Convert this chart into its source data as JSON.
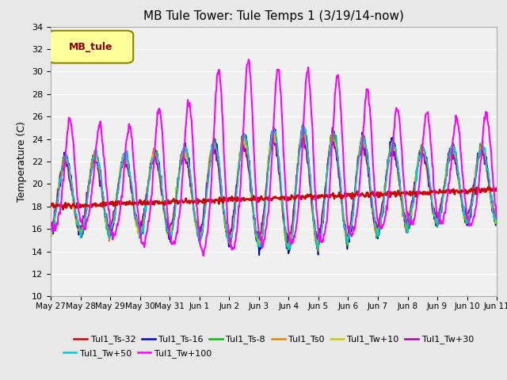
{
  "title": "MB Tule Tower: Tule Temps 1 (3/19/14-now)",
  "ylabel": "Temperature (C)",
  "ylim": [
    10,
    34
  ],
  "yticks": [
    10,
    12,
    14,
    16,
    18,
    20,
    22,
    24,
    26,
    28,
    30,
    32,
    34
  ],
  "bg_color": "#e8e8e8",
  "plot_bg": "#f0f0f0",
  "legend_label": "MB_tule",
  "series_order": [
    "Tul1_Ts-32",
    "Tul1_Ts-16",
    "Tul1_Ts-8",
    "Tul1_Ts0",
    "Tul1_Tw+10",
    "Tul1_Tw+30",
    "Tul1_Tw+50",
    "Tul1_Tw+100"
  ],
  "series": {
    "Tul1_Ts-32": {
      "color": "#cc0000",
      "lw": 1.8,
      "zorder": 5
    },
    "Tul1_Ts-16": {
      "color": "#0000cc",
      "lw": 1.2,
      "zorder": 4
    },
    "Tul1_Ts-8": {
      "color": "#00bb00",
      "lw": 1.2,
      "zorder": 4
    },
    "Tul1_Ts0": {
      "color": "#dd8800",
      "lw": 1.2,
      "zorder": 4
    },
    "Tul1_Tw+10": {
      "color": "#cccc00",
      "lw": 1.2,
      "zorder": 4
    },
    "Tul1_Tw+30": {
      "color": "#aa00aa",
      "lw": 1.2,
      "zorder": 4
    },
    "Tul1_Tw+50": {
      "color": "#00cccc",
      "lw": 1.2,
      "zorder": 4
    },
    "Tul1_Tw+100": {
      "color": "#ff00ff",
      "lw": 1.5,
      "zorder": 6
    }
  },
  "legend_entries": [
    {
      "color": "#cc0000",
      "label": "Tul1_Ts-32"
    },
    {
      "color": "#0000cc",
      "label": "Tul1_Ts-16"
    },
    {
      "color": "#00bb00",
      "label": "Tul1_Ts-8"
    },
    {
      "color": "#dd8800",
      "label": "Tul1_Ts0"
    },
    {
      "color": "#cccc00",
      "label": "Tul1_Tw+10"
    },
    {
      "color": "#aa00aa",
      "label": "Tul1_Tw+30"
    },
    {
      "color": "#00cccc",
      "label": "Tul1_Tw+50"
    },
    {
      "color": "#ff00ff",
      "label": "Tul1_Tw+100"
    }
  ],
  "x_tick_labels": [
    "May 27",
    "May 28",
    "May 29",
    "May 30",
    "May 31",
    "Jun 1",
    "Jun 2",
    "Jun 3",
    "Jun 4",
    "Jun 5",
    "Jun 6",
    "Jun 7",
    "Jun 8",
    "Jun 9",
    "Jun 10",
    "Jun 11"
  ],
  "n_days": 15,
  "pts_per_day": 48
}
